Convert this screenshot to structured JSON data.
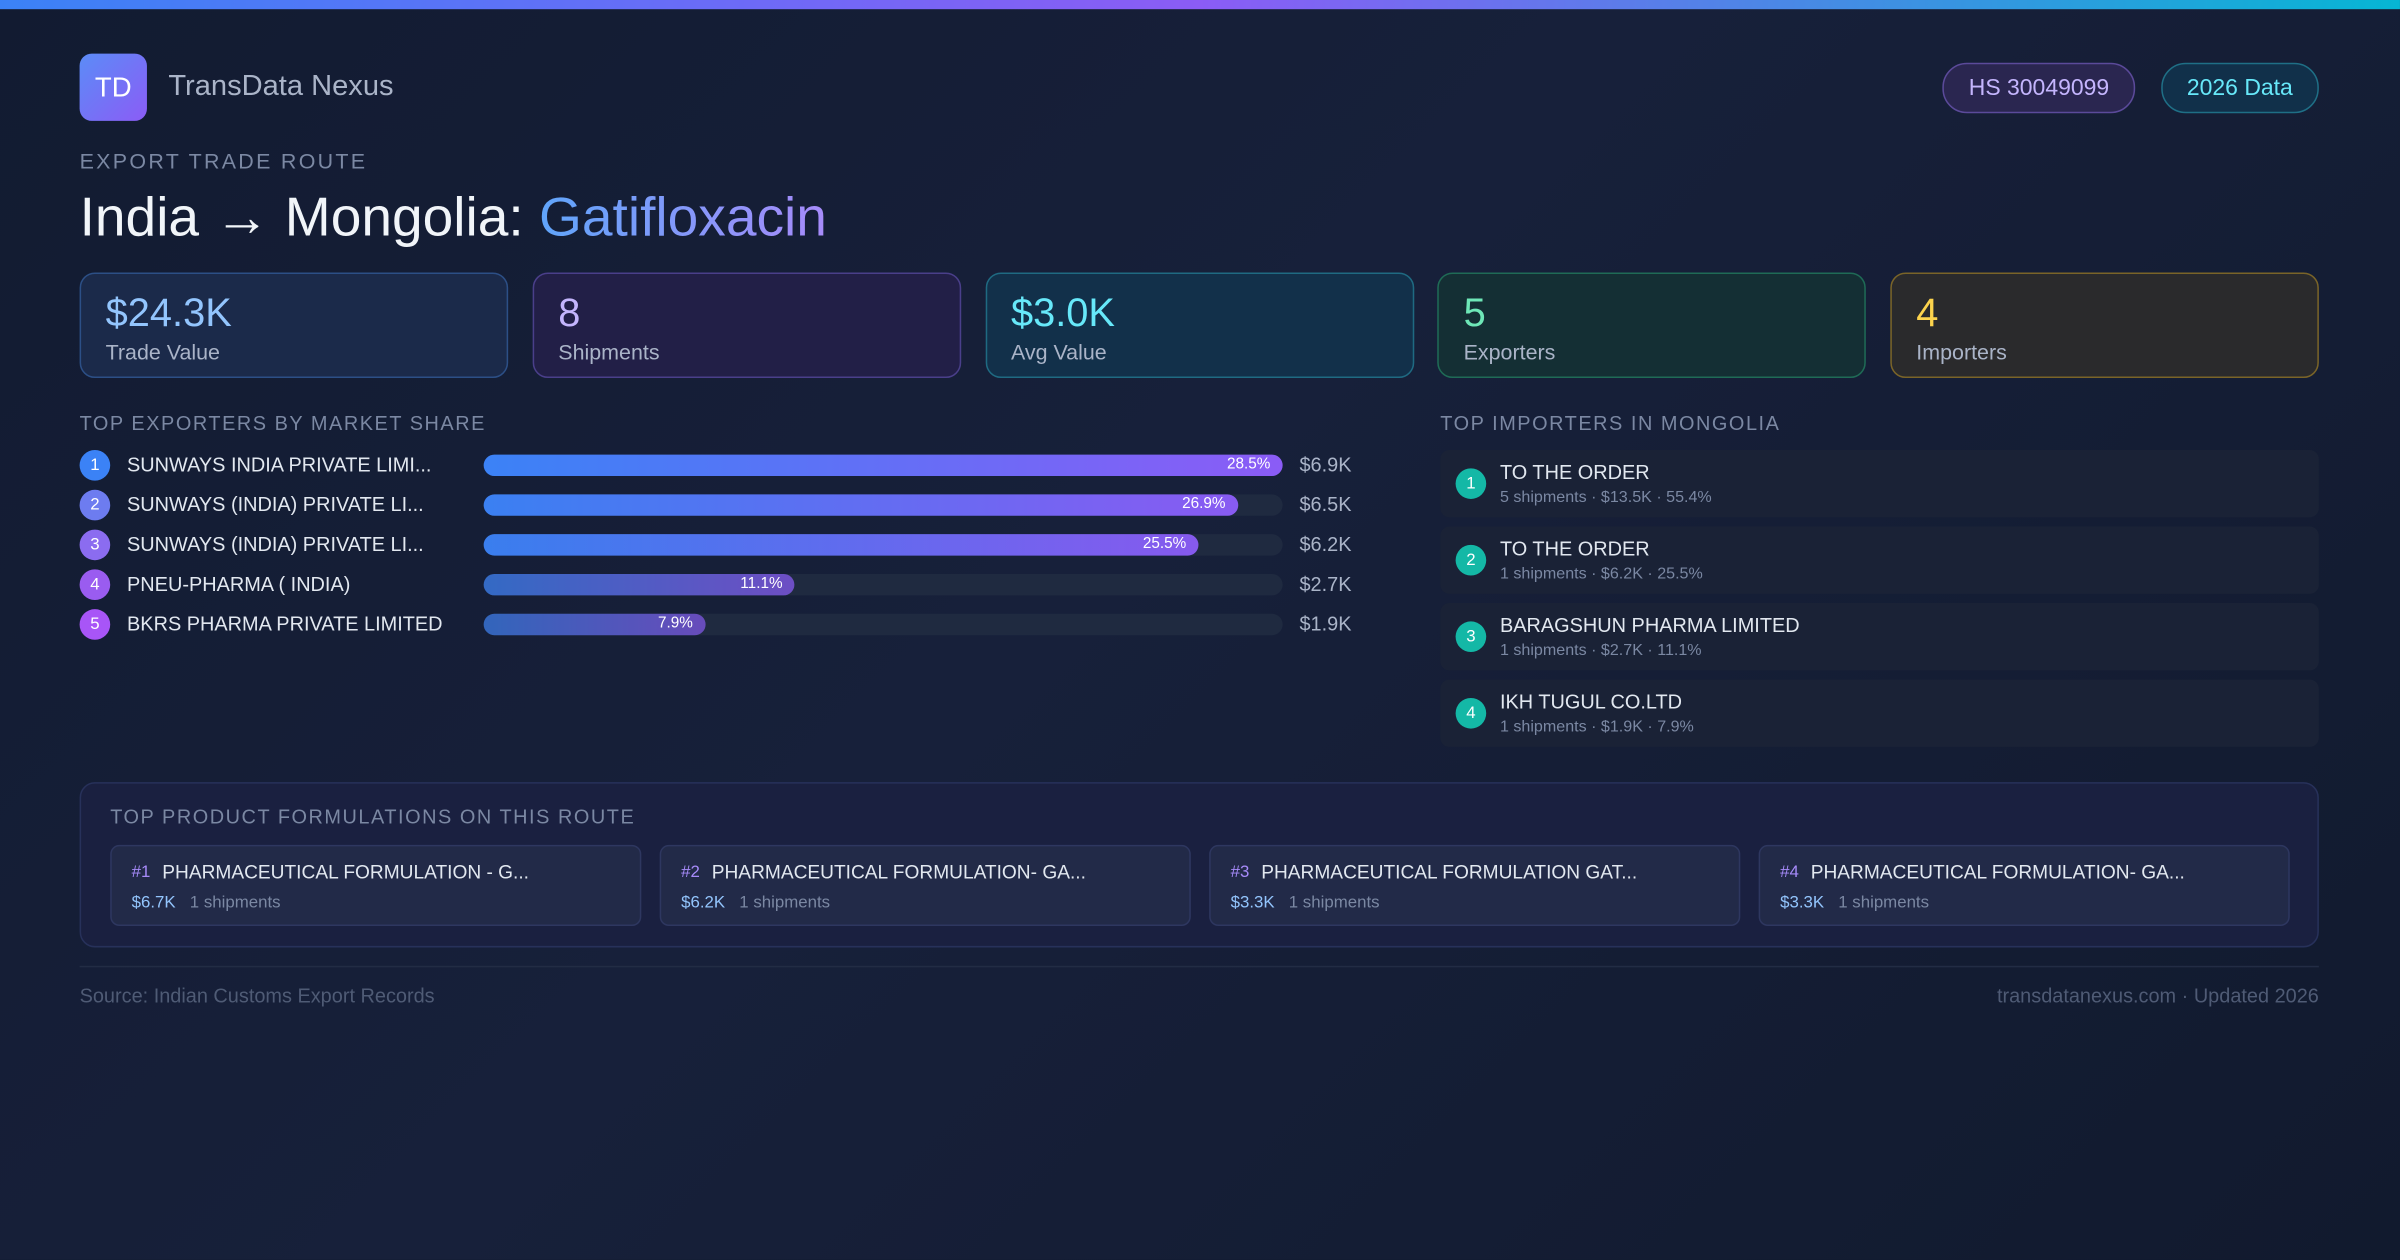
{
  "header": {
    "logo": "TD",
    "brand": "TransData Nexus",
    "badges": [
      "HS 30049099",
      "2026 Data"
    ]
  },
  "route": {
    "eyebrow": "EXPORT TRADE ROUTE",
    "title": "India → Mongolia: ",
    "product": "Gatifloxacin"
  },
  "kpis": [
    {
      "value": "$24.3K",
      "label": "Trade Value"
    },
    {
      "value": "8",
      "label": "Shipments"
    },
    {
      "value": "$3.0K",
      "label": "Avg Value"
    },
    {
      "value": "5",
      "label": "Exporters"
    },
    {
      "value": "4",
      "label": "Importers"
    }
  ],
  "exporters": {
    "title": "TOP EXPORTERS BY MARKET SHARE",
    "rows": [
      {
        "rank": "1",
        "name": "SUNWAYS INDIA PRIVATE LIMI...",
        "share": 28.5,
        "share_label": "28.5%",
        "value": "$6.9K"
      },
      {
        "rank": "2",
        "name": "SUNWAYS (INDIA) PRIVATE LI...",
        "share": 26.9,
        "share_label": "26.9%",
        "value": "$6.5K"
      },
      {
        "rank": "3",
        "name": "SUNWAYS (INDIA) PRIVATE LI...",
        "share": 25.5,
        "share_label": "25.5%",
        "value": "$6.2K"
      },
      {
        "rank": "4",
        "name": "PNEU-PHARMA ( INDIA)",
        "share": 11.1,
        "share_label": "11.1%",
        "value": "$2.7K"
      },
      {
        "rank": "5",
        "name": "BKRS PHARMA PRIVATE LIMITED",
        "share": 7.9,
        "share_label": "7.9%",
        "value": "$1.9K"
      }
    ]
  },
  "importers": {
    "title": "TOP IMPORTERS IN MONGOLIA",
    "rows": [
      {
        "rank": "1",
        "name": "TO THE ORDER",
        "detail": "5 shipments · $13.5K · 55.4%"
      },
      {
        "rank": "2",
        "name": "TO THE ORDER",
        "detail": "1 shipments · $6.2K · 25.5%"
      },
      {
        "rank": "3",
        "name": "BARAGSHUN PHARMA LIMITED",
        "detail": "1 shipments · $2.7K · 11.1%"
      },
      {
        "rank": "4",
        "name": "IKH TUGUL CO.LTD",
        "detail": "1 shipments · $1.9K · 7.9%"
      }
    ]
  },
  "products": {
    "title": "TOP PRODUCT FORMULATIONS ON THIS ROUTE",
    "items": [
      {
        "rank": "#1",
        "name": "PHARMACEUTICAL FORMULATION - G...",
        "value": "$6.7K",
        "shipments": "1 shipments"
      },
      {
        "rank": "#2",
        "name": "PHARMACEUTICAL FORMULATION- GA...",
        "value": "$6.2K",
        "shipments": "1 shipments"
      },
      {
        "rank": "#3",
        "name": "PHARMACEUTICAL FORMULATION GAT...",
        "value": "$3.3K",
        "shipments": "1 shipments"
      },
      {
        "rank": "#4",
        "name": "PHARMACEUTICAL FORMULATION- GA...",
        "value": "$3.3K",
        "shipments": "1 shipments"
      }
    ]
  },
  "footer": {
    "source": "Source: Indian Customs Export Records",
    "site": "transdatanexus.com · Updated 2026"
  }
}
